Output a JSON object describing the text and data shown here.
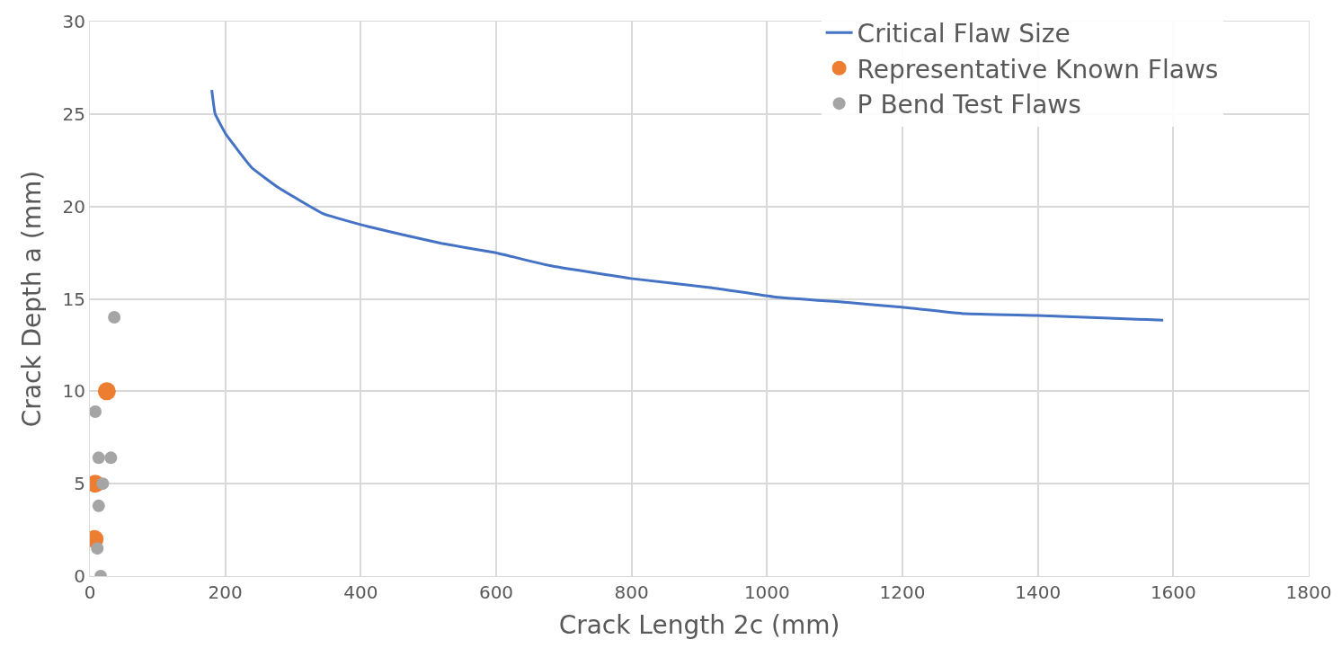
{
  "chart_data": {
    "type": "line",
    "xlabel": "Crack Length 2c (mm)",
    "ylabel": "Crack Depth a (mm)",
    "xlim": [
      0,
      1800
    ],
    "xticks": [
      0,
      200,
      400,
      600,
      800,
      1000,
      1200,
      1400,
      1600,
      1800
    ],
    "ylim": [
      0,
      30
    ],
    "yticks": [
      0,
      5,
      10,
      15,
      20,
      25,
      30
    ],
    "grid": true,
    "legend": "top right",
    "series": [
      {
        "name": "Critical Flaw Size",
        "color": "#4472c4",
        "marker": "none",
        "x": [
          180,
          185,
          201,
          239,
          279,
          345,
          412,
          519,
          598,
          679,
          799,
          919,
          1012,
          1119,
          1199,
          1292,
          1399,
          1505,
          1585
        ],
        "values": [
          26.3,
          25,
          23.9,
          22.1,
          21.0,
          19.6,
          18.9,
          18.0,
          17.5,
          16.8,
          16.1,
          15.6,
          15.1,
          14.8,
          14.55,
          14.2,
          14.1,
          13.95,
          13.85
        ]
      },
      {
        "name": "Representative Known Flaws",
        "type": "scatter",
        "color": "#ed7d31",
        "marker": "circle",
        "x": [
          7,
          8,
          25
        ],
        "values": [
          2,
          5,
          10
        ]
      },
      {
        "name": "P Bend Test Flaws",
        "type": "scatter",
        "color": "#a5a5a5",
        "marker": "circle",
        "x": [
          16,
          11,
          13,
          19,
          13,
          31,
          8,
          36
        ],
        "values": [
          0,
          1.5,
          3.8,
          5,
          6.4,
          6.4,
          8.9,
          14
        ]
      }
    ]
  }
}
